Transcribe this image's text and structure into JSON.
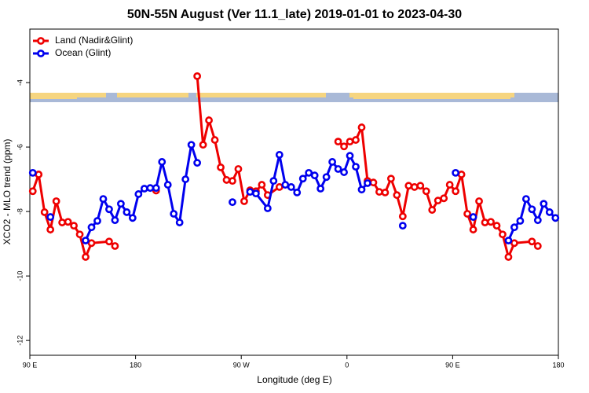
{
  "chart_data": {
    "type": "line",
    "title": "50N-55N August (Ver 11.1_late)   2019-01-01 to 2023-04-30",
    "x_label": "Longitude (deg E)",
    "y_label": "XCO2 - MLO trend (ppm)",
    "xlim": [
      90,
      540
    ],
    "ylim": [
      -12.46,
      -2.34
    ],
    "xticks": [
      {
        "value": 90,
        "label": "90 E"
      },
      180,
      {
        "value": 270,
        "label": "90 W"
      },
      {
        "value": 360,
        "label": "0"
      },
      {
        "value": 450,
        "label": "90 E"
      },
      {
        "value": 540,
        "label": "180"
      }
    ],
    "yticks": [
      -4,
      -6,
      -8,
      -10,
      -12
    ],
    "legend": "topleft",
    "series": [
      {
        "name": "Land (Nadir&Glint)",
        "color": "#ee0000",
        "x": [
          92.5,
          97.5,
          102.5,
          107.5,
          112.5,
          117.5,
          122.5,
          127.5,
          132.5,
          137.5,
          142.5,
          157.5,
          162.5,
          167.5,
          197.5,
          202.5,
          232.5,
          237.5,
          242.5,
          247.5,
          252.5,
          257.5,
          262.5,
          267.5,
          272.5,
          277.5,
          282.5,
          287.5,
          292.5,
          302.5,
          307.5,
          352.5,
          357.5,
          362.5,
          367.5,
          372.5,
          377.5,
          382.5,
          387.5,
          392.5,
          397.5,
          402.5,
          407.5,
          412.5,
          417.5,
          422.5,
          427.5,
          432.5,
          437.5,
          442.5,
          447.5,
          452.5,
          457.5,
          462.5,
          467.5,
          472.5,
          477.5,
          482.5,
          487.5,
          492.5,
          497.5,
          502.5,
          517.5,
          522.5
        ],
        "values": [
          -7.37,
          -6.85,
          -8.02,
          -8.56,
          -7.68,
          -8.34,
          -8.32,
          -8.44,
          -8.71,
          -9.41,
          -8.98,
          -8.93,
          -9.07,
          null,
          -7.35,
          null,
          -3.8,
          -5.93,
          -5.17,
          -5.78,
          -6.63,
          -7.02,
          -7.05,
          -6.68,
          -7.68,
          -7.34,
          -7.37,
          -7.17,
          -7.49,
          -7.24,
          null,
          -5.83,
          -5.98,
          -5.83,
          -5.78,
          -5.39,
          -7.05,
          -7.1,
          -7.39,
          -7.41,
          -6.98,
          -7.49,
          -8.15,
          -7.2,
          -7.24,
          -7.2,
          -7.37,
          -7.95,
          -7.66,
          -7.59,
          -7.17,
          -7.37,
          -6.85,
          -8.07,
          -8.56,
          -7.68,
          -8.34,
          -8.32,
          -8.44,
          -8.71,
          -9.41,
          -8.98,
          -8.93,
          -9.07
        ]
      },
      {
        "name": "Ocean (Glint)",
        "color": "#0000ee",
        "x": [
          92.5,
          97.5,
          107.5,
          112.5,
          137.5,
          142.5,
          147.5,
          152.5,
          157.5,
          162.5,
          167.5,
          172.5,
          177.5,
          182.5,
          187.5,
          192.5,
          197.5,
          202.5,
          207.5,
          212.5,
          217.5,
          222.5,
          227.5,
          232.5,
          237.5,
          262.5,
          267.5,
          277.5,
          282.5,
          292.5,
          297.5,
          302.5,
          307.5,
          312.5,
          317.5,
          322.5,
          327.5,
          332.5,
          337.5,
          342.5,
          347.5,
          352.5,
          357.5,
          362.5,
          367.5,
          372.5,
          377.5,
          382.5,
          407.5,
          412.5,
          452.5,
          457.5,
          467.5,
          472.5,
          497.5,
          502.5,
          507.5,
          512.5,
          517.5,
          522.5,
          527.5,
          532.5,
          537.5
        ],
        "values": [
          -6.8,
          null,
          -8.17,
          null,
          -8.9,
          -8.49,
          -8.29,
          -7.61,
          -7.93,
          -8.27,
          -7.76,
          -8.02,
          -8.2,
          -7.46,
          -7.29,
          -7.27,
          -7.27,
          -6.46,
          -7.17,
          -8.07,
          -8.34,
          -7.0,
          -5.93,
          -6.49,
          null,
          -7.71,
          null,
          -7.39,
          -7.44,
          -7.9,
          -7.05,
          -6.24,
          -7.17,
          -7.24,
          -7.41,
          -6.98,
          -6.8,
          -6.88,
          -7.29,
          -6.93,
          -6.46,
          -6.68,
          -6.78,
          -6.27,
          -6.61,
          -7.32,
          -7.12,
          null,
          -8.44,
          null,
          -6.8,
          null,
          -8.17,
          null,
          -8.9,
          -8.49,
          -8.29,
          -7.61,
          -7.93,
          -8.27,
          -7.76,
          -8.02,
          -8.2
        ]
      }
    ]
  }
}
